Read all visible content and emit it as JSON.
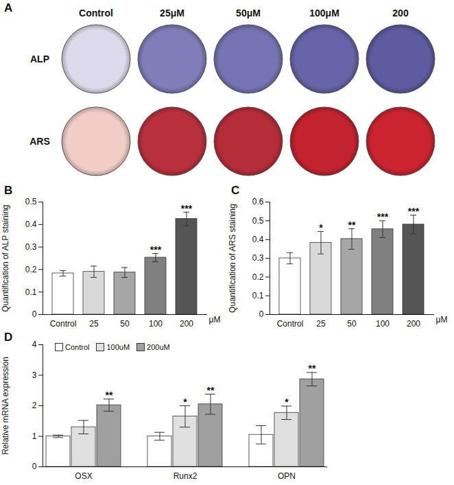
{
  "panel_a": {
    "title": "A",
    "columns": [
      "Control",
      "25μM",
      "50μM",
      "100μM",
      "200"
    ],
    "rows": [
      {
        "label": "ALP",
        "colors": [
          "#dcdaec",
          "#807dba",
          "#7774b3",
          "#6764a9",
          "#5e5ba0"
        ]
      },
      {
        "label": "ARS",
        "colors": [
          "#f2cdc8",
          "#b9303d",
          "#b62d3a",
          "#c2232f",
          "#cb2430"
        ]
      }
    ]
  },
  "chart_data": [
    {
      "title": "B",
      "type": "bar",
      "categories": [
        "Control",
        "25",
        "50",
        "100",
        "200"
      ],
      "values": [
        0.183,
        0.19,
        0.187,
        0.253,
        0.425
      ],
      "errors": [
        0.012,
        0.025,
        0.022,
        0.018,
        0.03
      ],
      "annotations": [
        null,
        null,
        null,
        "***",
        "***"
      ],
      "colors": [
        "#ffffff",
        "#d9d9d9",
        "#a6a6a6",
        "#808080",
        "#555555"
      ],
      "xlabel": "μM",
      "ylabel": "Quantification of ALP staining",
      "ylim": [
        0,
        0.5
      ],
      "yticks": [
        0,
        0.1,
        0.2,
        0.3,
        0.4,
        0.5
      ]
    },
    {
      "title": "C",
      "type": "bar",
      "categories": [
        "Control",
        "25",
        "50",
        "100",
        "200"
      ],
      "values": [
        0.3,
        0.383,
        0.403,
        0.455,
        0.48
      ],
      "errors": [
        0.03,
        0.06,
        0.055,
        0.045,
        0.05
      ],
      "annotations": [
        null,
        "*",
        "**",
        "***",
        "***"
      ],
      "colors": [
        "#ffffff",
        "#d9d9d9",
        "#a6a6a6",
        "#808080",
        "#555555"
      ],
      "xlabel": "μM",
      "ylabel": "Quantification of ARS staining",
      "ylim": [
        0,
        0.6
      ],
      "yticks": [
        0,
        0.1,
        0.2,
        0.3,
        0.4,
        0.5,
        0.6
      ]
    },
    {
      "title": "D",
      "type": "bar",
      "categories": [
        "OSX",
        "Runx2",
        "OPN"
      ],
      "series": [
        {
          "name": "Control",
          "color": "#ffffff",
          "values": [
            1.0,
            1.0,
            1.05
          ],
          "errors": [
            0.04,
            0.13,
            0.3
          ]
        },
        {
          "name": "100uM",
          "color": "#e0e0e0",
          "values": [
            1.3,
            1.65,
            1.77
          ],
          "errors": [
            0.22,
            0.35,
            0.22
          ],
          "annotations": [
            null,
            "*",
            "*"
          ]
        },
        {
          "name": "200uM",
          "color": "#a0a0a0",
          "values": [
            2.02,
            2.05,
            2.87
          ],
          "errors": [
            0.2,
            0.33,
            0.22
          ],
          "annotations": [
            "**",
            "**",
            "**"
          ]
        }
      ],
      "ylabel": "Relative mRNA expression",
      "ylim": [
        0,
        4
      ],
      "yticks": [
        0,
        1,
        2,
        3,
        4
      ],
      "legend": "top-left"
    }
  ]
}
